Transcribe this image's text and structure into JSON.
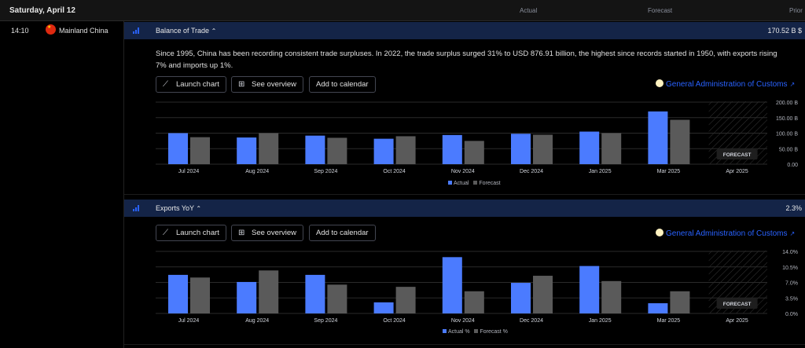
{
  "header": {
    "date": "Saturday, April 12",
    "col_actual": "Actual",
    "col_forecast": "Forecast",
    "col_prior": "Prior"
  },
  "row": {
    "time": "14:10",
    "country": "Mainland China",
    "flag_icon": "china-flag-icon"
  },
  "events": [
    {
      "title": "Balance of Trade",
      "chevron": "⌃",
      "value": "170.52 B $",
      "description": "Since 1995, China has been recording consistent trade surpluses. In 2022, the trade surplus surged 31% to USD 876.91 billion, the highest since records started in 1950, with exports rising 7% and imports up 1%.",
      "buttons": {
        "launch": "Launch chart",
        "overview": "See overview",
        "calendar": "Add to calendar"
      },
      "source": "General Administration of Customs",
      "forecast_tag": "FORECAST",
      "legend": {
        "actual": "Actual",
        "forecast": "Forecast"
      }
    },
    {
      "title": "Exports YoY",
      "chevron": "⌃",
      "value": "2.3%",
      "buttons": {
        "launch": "Launch chart",
        "overview": "See overview",
        "calendar": "Add to calendar"
      },
      "source": "General Administration of Customs",
      "forecast_tag": "FORECAST",
      "legend": {
        "actual": "Actual %",
        "forecast": "Forecast %"
      }
    }
  ],
  "colors": {
    "actual": "#4b7bff",
    "forecast": "#5a5a5a",
    "link": "#2962ff",
    "header_bg": "#142447"
  },
  "chart_data": [
    {
      "type": "bar",
      "categories": [
        "Jul 2024",
        "Aug 2024",
        "Sep 2024",
        "Oct 2024",
        "Nov 2024",
        "Dec 2024",
        "Jan 2025",
        "Mar 2025",
        "Apr 2025"
      ],
      "series": [
        {
          "name": "Actual",
          "values": [
            100,
            86,
            92,
            82,
            94,
            98,
            105,
            170,
            null
          ]
        },
        {
          "name": "Forecast",
          "values": [
            87,
            100,
            85,
            90,
            75,
            95,
            100,
            143,
            null
          ]
        }
      ],
      "yticks": [
        "0.00",
        "50.00 B",
        "100.00 B",
        "150.00 B",
        "200.00 B"
      ],
      "ylim": [
        0,
        200
      ],
      "forecast_category": "Apr 2025",
      "grid": true
    },
    {
      "type": "bar",
      "categories": [
        "Jul 2024",
        "Aug 2024",
        "Sep 2024",
        "Oct 2024",
        "Nov 2024",
        "Dec 2024",
        "Jan 2025",
        "Mar 2025",
        "Apr 2025"
      ],
      "series": [
        {
          "name": "Actual %",
          "values": [
            8.7,
            7.1,
            8.7,
            2.5,
            12.7,
            6.9,
            10.7,
            2.3,
            null
          ]
        },
        {
          "name": "Forecast %",
          "values": [
            8.1,
            9.7,
            6.5,
            6.0,
            5.0,
            8.5,
            7.3,
            5.0,
            null
          ]
        }
      ],
      "yticks": [
        "0.0%",
        "3.5%",
        "7.0%",
        "10.5%",
        "14.0%"
      ],
      "ylim": [
        0,
        14
      ],
      "forecast_category": "Apr 2025",
      "grid": true
    }
  ]
}
